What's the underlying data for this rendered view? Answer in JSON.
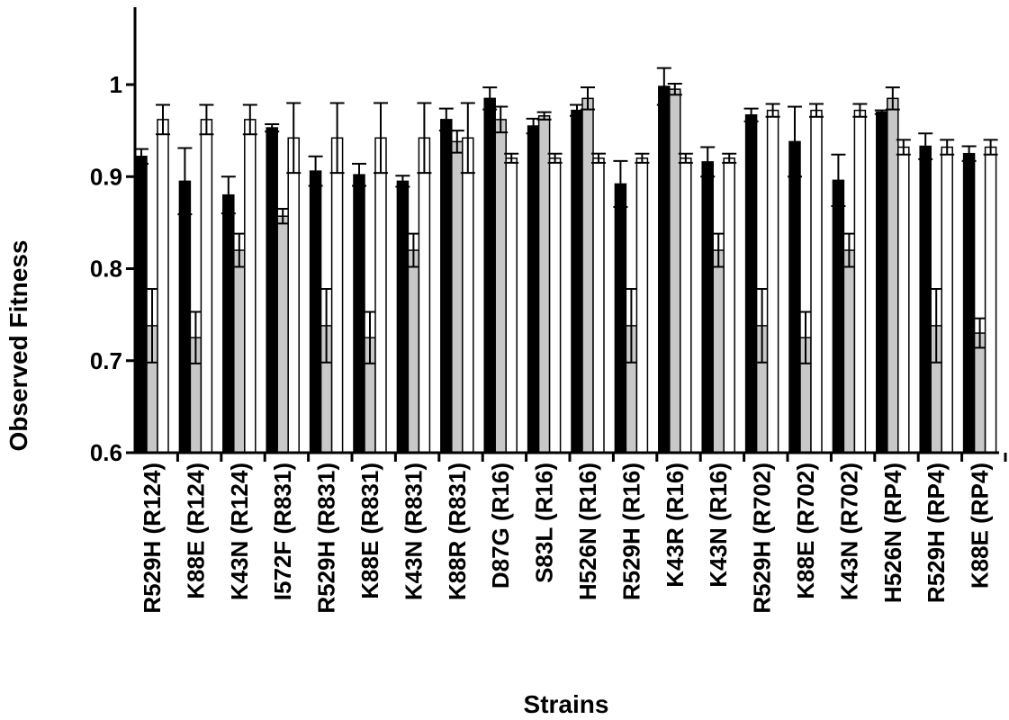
{
  "chart_data": {
    "type": "bar",
    "title": "",
    "xlabel": "Strains",
    "ylabel": "Observed Fitness",
    "ylim": [
      0.6,
      1.08
    ],
    "yticks": [
      "0.6",
      "0.7",
      "0.8",
      "0.9",
      "1"
    ],
    "ytick_values": [
      0.6,
      0.7,
      0.8,
      0.9,
      1.0
    ],
    "categories": [
      "R529H (R124)",
      "K88E (R124)",
      "K43N (R124)",
      "I572F (R831)",
      "R529H (R831)",
      "K88E (R831)",
      "K43N (R831)",
      "K88R (R831)",
      "D87G (R16)",
      "S83L (R16)",
      "H526N (R16)",
      "R529H (R16)",
      "K43R (R16)",
      "K43N (R16)",
      "R529H (R702)",
      "K88E (R702)",
      "K43N (R702)",
      "H526N (RP4)",
      "R529H (RP4)",
      "K88E (RP4)"
    ],
    "series": [
      {
        "color": "#000000",
        "values": [
          0.922,
          0.895,
          0.88,
          0.953,
          0.906,
          0.902,
          0.895,
          0.962,
          0.985,
          0.955,
          0.972,
          0.892,
          0.998,
          0.916,
          0.967,
          0.938,
          0.896,
          0.97,
          0.933,
          0.925
        ],
        "errors": [
          0.008,
          0.036,
          0.02,
          0.004,
          0.016,
          0.012,
          0.006,
          0.012,
          0.012,
          0.008,
          0.006,
          0.025,
          0.02,
          0.016,
          0.007,
          0.038,
          0.028,
          0.002,
          0.014,
          0.008
        ]
      },
      {
        "color": "#c8c8c8",
        "values": [
          0.738,
          0.725,
          0.82,
          0.857,
          0.738,
          0.725,
          0.82,
          0.938,
          0.962,
          0.966,
          0.985,
          0.738,
          0.995,
          0.82,
          0.738,
          0.725,
          0.82,
          0.985,
          0.738,
          0.73
        ],
        "errors": [
          0.04,
          0.028,
          0.018,
          0.008,
          0.04,
          0.028,
          0.018,
          0.012,
          0.014,
          0.004,
          0.012,
          0.04,
          0.006,
          0.018,
          0.04,
          0.028,
          0.018,
          0.012,
          0.04,
          0.016
        ]
      },
      {
        "color": "#ffffff",
        "values": [
          0.962,
          0.962,
          0.962,
          0.942,
          0.942,
          0.942,
          0.942,
          0.942,
          0.92,
          0.92,
          0.92,
          0.92,
          0.92,
          0.92,
          0.972,
          0.972,
          0.972,
          0.932,
          0.932,
          0.932
        ],
        "errors": [
          0.016,
          0.016,
          0.016,
          0.038,
          0.038,
          0.038,
          0.038,
          0.038,
          0.005,
          0.005,
          0.005,
          0.005,
          0.005,
          0.005,
          0.007,
          0.007,
          0.007,
          0.008,
          0.008,
          0.008
        ]
      }
    ],
    "grid": false,
    "legend": "none"
  }
}
